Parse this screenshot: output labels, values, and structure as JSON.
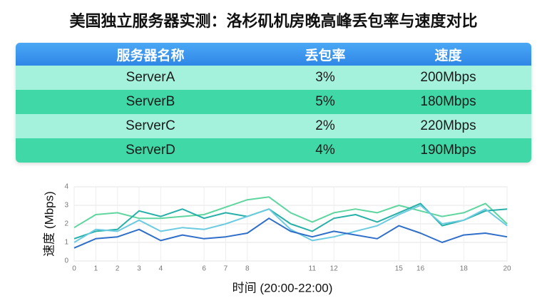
{
  "title": "美国独立服务器实测：洛杉矶机房晚高峰丢包率与速度对比",
  "table": {
    "header": [
      "服务器名称",
      "丢包率",
      "速度"
    ],
    "rows": [
      [
        "ServerA",
        "3%",
        "200Mbps"
      ],
      [
        "ServerB",
        "5%",
        "180Mbps"
      ],
      [
        "ServerC",
        "2%",
        "220Mbps"
      ],
      [
        "ServerD",
        "4%",
        "190Mbps"
      ]
    ]
  },
  "chart_data": {
    "type": "line",
    "x_label": "时间 (20:00-22:00)",
    "y_label": "速度 (Mbps)",
    "x": [
      0,
      1,
      2,
      3,
      4,
      5,
      6,
      7,
      8,
      9,
      10,
      11,
      12,
      13,
      14,
      15,
      16,
      17,
      18,
      19,
      20
    ],
    "series": [
      {
        "color": "#5fd6a0",
        "values": [
          1.8,
          2.5,
          2.6,
          2.3,
          2.3,
          2.4,
          2.5,
          2.9,
          3.3,
          3.45,
          2.6,
          2.1,
          2.6,
          2.8,
          2.6,
          3.0,
          2.7,
          2.4,
          2.6,
          3.1,
          2.0
        ]
      },
      {
        "color": "#27b0a8",
        "values": [
          1.2,
          1.6,
          1.7,
          2.7,
          2.4,
          2.8,
          2.3,
          2.6,
          2.4,
          2.8,
          2.0,
          1.6,
          2.3,
          2.5,
          2.1,
          2.6,
          3.1,
          1.9,
          2.2,
          2.7,
          2.8
        ]
      },
      {
        "color": "#6ccbe0",
        "values": [
          1.0,
          1.7,
          1.6,
          2.2,
          1.6,
          1.8,
          1.7,
          2.0,
          2.4,
          2.8,
          1.7,
          1.1,
          1.3,
          1.6,
          1.9,
          2.5,
          3.0,
          2.0,
          2.2,
          2.8,
          1.9
        ]
      },
      {
        "color": "#2f6fc9",
        "values": [
          0.7,
          1.2,
          1.3,
          1.7,
          1.1,
          1.4,
          1.2,
          1.3,
          1.5,
          2.3,
          1.6,
          1.3,
          1.6,
          1.4,
          1.2,
          1.9,
          1.5,
          1.0,
          1.4,
          1.5,
          1.3
        ]
      }
    ],
    "xlim": [
      0,
      20
    ],
    "ylim": [
      0,
      4
    ],
    "xticks": [
      0,
      1,
      2,
      3,
      4,
      6,
      7,
      8,
      11,
      12,
      15,
      16,
      18,
      20
    ],
    "yticks": [
      0,
      1,
      2,
      3,
      4
    ],
    "grid": true
  }
}
